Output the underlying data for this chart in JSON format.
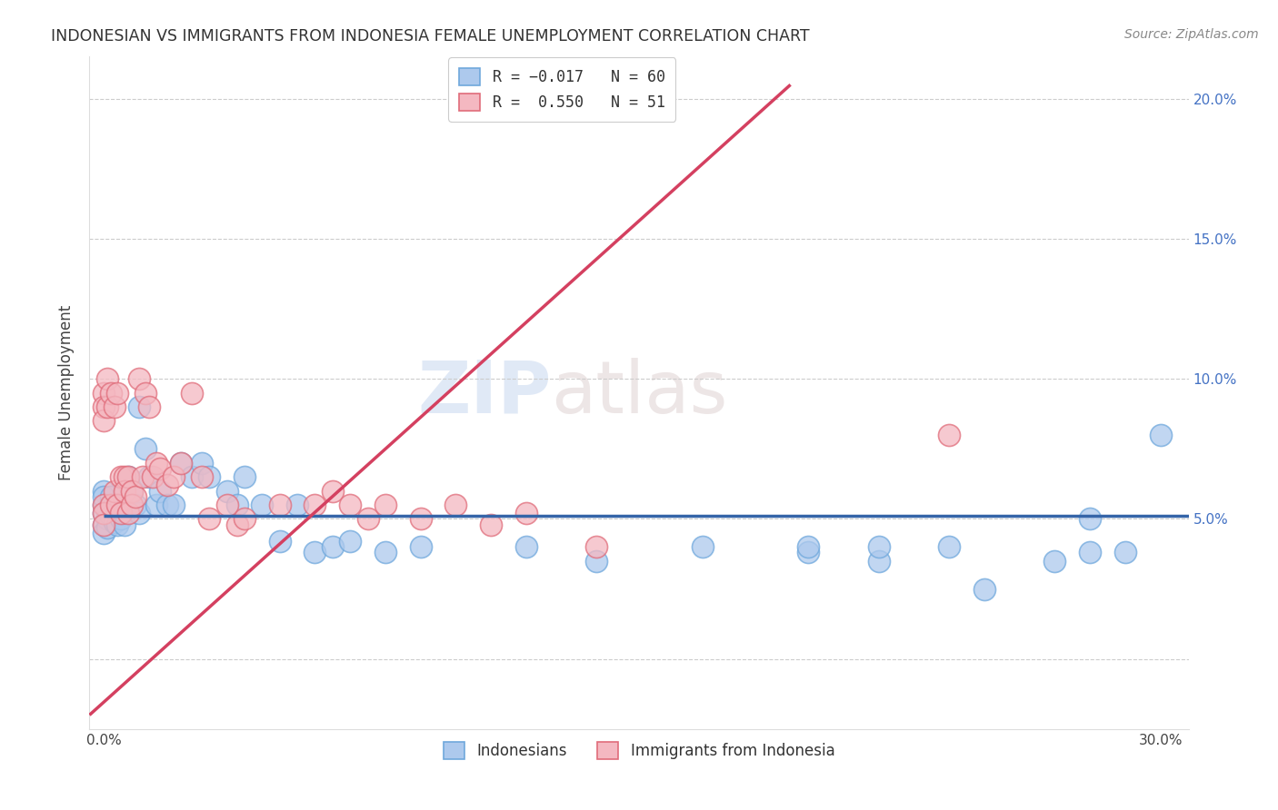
{
  "title": "INDONESIAN VS IMMIGRANTS FROM INDONESIA FEMALE UNEMPLOYMENT CORRELATION CHART",
  "source": "Source: ZipAtlas.com",
  "ylabel": "Female Unemployment",
  "watermark": "ZIPatlas",
  "xlim": [
    -0.004,
    0.308
  ],
  "ylim": [
    -0.025,
    0.215
  ],
  "blue_face": "#adc9ed",
  "blue_edge": "#6fa8dc",
  "pink_face": "#f4b8c1",
  "pink_edge": "#e06c7a",
  "blue_line": "#3565a8",
  "pink_line": "#d44060",
  "blue_line_x": [
    0.0,
    0.308
  ],
  "blue_line_y": [
    0.051,
    0.051
  ],
  "pink_line_x": [
    -0.004,
    0.195
  ],
  "pink_line_y": [
    -0.02,
    0.205
  ],
  "indo_x": [
    0.0,
    0.0,
    0.0,
    0.0,
    0.0,
    0.0,
    0.001,
    0.001,
    0.001,
    0.002,
    0.002,
    0.003,
    0.003,
    0.004,
    0.004,
    0.005,
    0.005,
    0.006,
    0.006,
    0.007,
    0.007,
    0.008,
    0.009,
    0.01,
    0.01,
    0.012,
    0.013,
    0.015,
    0.016,
    0.018,
    0.02,
    0.022,
    0.025,
    0.028,
    0.03,
    0.035,
    0.038,
    0.04,
    0.045,
    0.05,
    0.055,
    0.06,
    0.065,
    0.07,
    0.08,
    0.09,
    0.12,
    0.14,
    0.17,
    0.2,
    0.22,
    0.24,
    0.25,
    0.27,
    0.28,
    0.29,
    0.3,
    0.2,
    0.22,
    0.28
  ],
  "indo_y": [
    0.055,
    0.052,
    0.048,
    0.06,
    0.045,
    0.058,
    0.053,
    0.05,
    0.047,
    0.058,
    0.051,
    0.055,
    0.049,
    0.052,
    0.048,
    0.055,
    0.05,
    0.052,
    0.048,
    0.065,
    0.055,
    0.06,
    0.055,
    0.09,
    0.052,
    0.075,
    0.065,
    0.055,
    0.06,
    0.055,
    0.055,
    0.07,
    0.065,
    0.07,
    0.065,
    0.06,
    0.055,
    0.065,
    0.055,
    0.042,
    0.055,
    0.038,
    0.04,
    0.042,
    0.038,
    0.04,
    0.04,
    0.035,
    0.04,
    0.038,
    0.035,
    0.04,
    0.025,
    0.035,
    0.038,
    0.038,
    0.08,
    0.04,
    0.04,
    0.05
  ],
  "immig_x": [
    0.0,
    0.0,
    0.0,
    0.0,
    0.0,
    0.0,
    0.001,
    0.001,
    0.002,
    0.002,
    0.003,
    0.003,
    0.004,
    0.004,
    0.005,
    0.005,
    0.006,
    0.006,
    0.007,
    0.007,
    0.008,
    0.008,
    0.009,
    0.01,
    0.011,
    0.012,
    0.013,
    0.014,
    0.015,
    0.016,
    0.018,
    0.02,
    0.022,
    0.025,
    0.028,
    0.03,
    0.035,
    0.038,
    0.04,
    0.05,
    0.06,
    0.065,
    0.07,
    0.075,
    0.08,
    0.09,
    0.1,
    0.11,
    0.12,
    0.14,
    0.24
  ],
  "immig_y": [
    0.095,
    0.09,
    0.085,
    0.055,
    0.052,
    0.048,
    0.1,
    0.09,
    0.095,
    0.055,
    0.09,
    0.06,
    0.095,
    0.055,
    0.065,
    0.052,
    0.065,
    0.06,
    0.065,
    0.052,
    0.06,
    0.055,
    0.058,
    0.1,
    0.065,
    0.095,
    0.09,
    0.065,
    0.07,
    0.068,
    0.062,
    0.065,
    0.07,
    0.095,
    0.065,
    0.05,
    0.055,
    0.048,
    0.05,
    0.055,
    0.055,
    0.06,
    0.055,
    0.05,
    0.055,
    0.05,
    0.055,
    0.048,
    0.052,
    0.04,
    0.08
  ],
  "right_yticks": [
    0.05,
    0.1,
    0.15,
    0.2
  ],
  "right_ytick_labels": [
    "5.0%",
    "10.0%",
    "15.0%",
    "20.0%"
  ]
}
